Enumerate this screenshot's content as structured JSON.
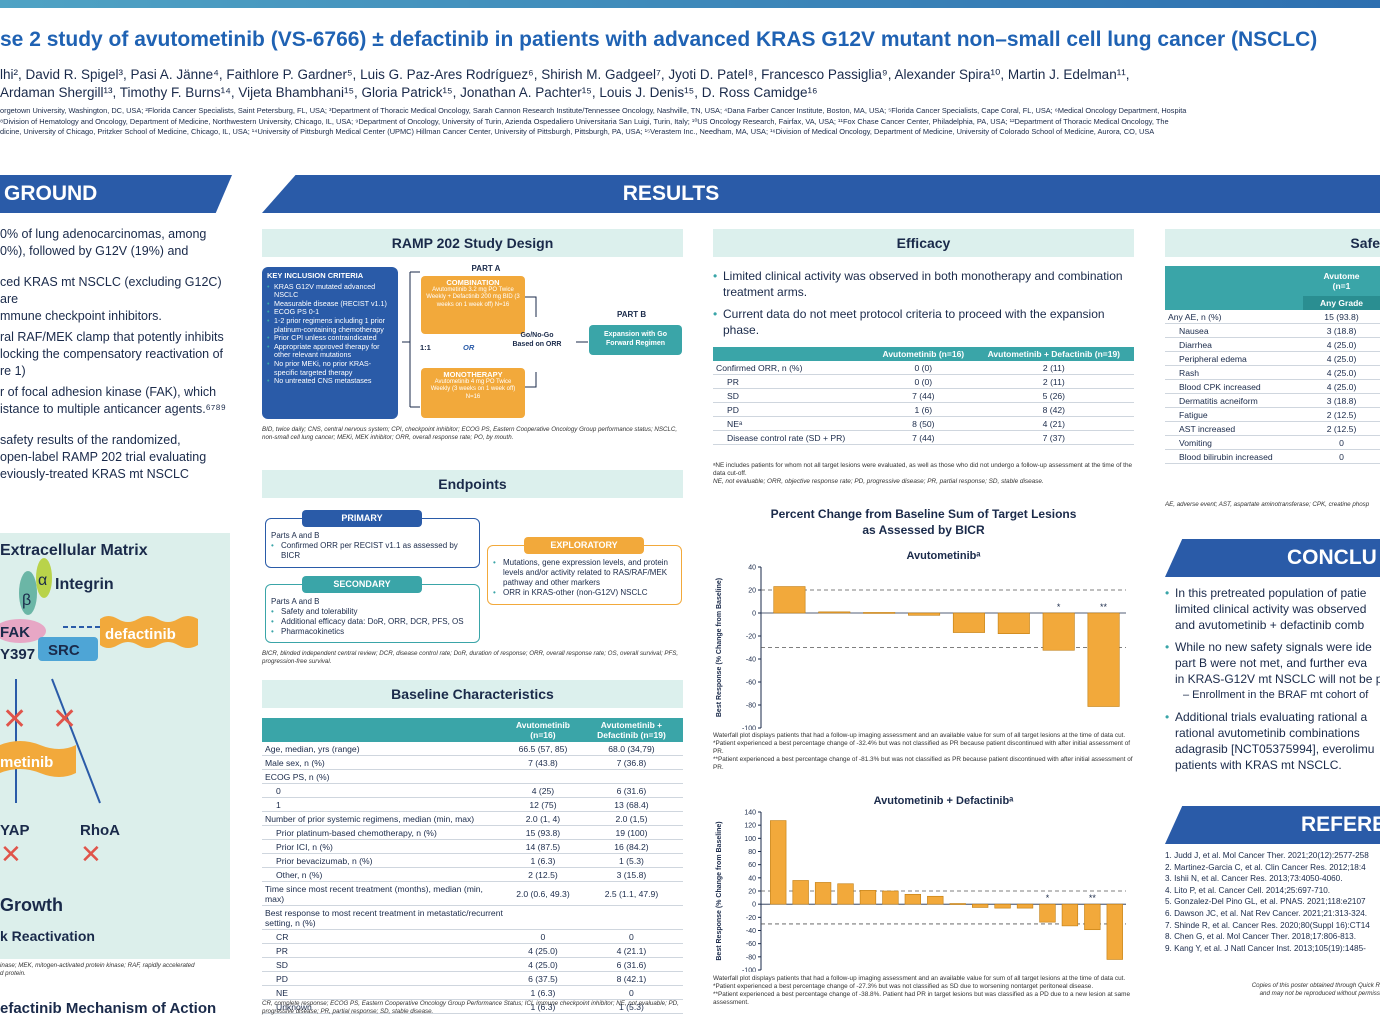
{
  "header": {
    "title": "se 2 study of avutometinib (VS-6766) ± defactinib in patients with advanced KRAS G12V mutant non–small cell lung cancer (NSCLC)",
    "authors_line1": "lhi², David R. Spigel³, Pasi A. Jänne⁴, Faithlore P. Gardner⁵, Luis G. Paz-Ares Rodríguez⁶, Shirish M. Gadgeel⁷, Jyoti D. Patel⁸, Francesco Passiglia⁹, Alexander Spira¹⁰, Martin J. Edelman¹¹,",
    "authors_line2": "Ardaman Shergill¹³, Timothy F. Burns¹⁴, Vijeta Bhambhani¹⁵, Gloria Patrick¹⁵, Jonathan A. Pachter¹⁵, Louis J. Denis¹⁵, D. Ross Camidge¹⁶",
    "affil1": "orgetown University, Washington, DC, USA; ²Florida Cancer Specialists, Saint Petersburg, FL, USA; ³Department of Thoracic Medical Oncology, Sarah Cannon Research Institute/Tennessee Oncology, Nashville, TN, USA; ⁴Dana Farber Cancer Institute, Boston, MA, USA; ⁵Florida Cancer Specialists, Cape Coral, FL, USA; ⁶Medical Oncology Department, Hospita",
    "affil2": "⁸Division of Hematology and Oncology, Department of Medicine, Northwestern University, Chicago, IL, USA; ⁹Department of Oncology, University of Turin, Azienda Ospedaliero Universitaria San Luigi, Turin, Italy; ¹⁰US Oncology Research, Fairfax, VA, USA; ¹¹Fox Chase Cancer Center, Philadelphia, PA, USA; ¹²Department of Thoracic Medical Oncology, The",
    "affil3": "dicine, University of Chicago, Pritzker School of Medicine, Chicago, IL, USA; ¹⁴University of Pittsburgh Medical Center (UPMC) Hillman Cancer Center, University of Pittsburgh, Pittsburgh, PA, USA; ¹⁵Verastem Inc., Needham, MA, USA; ¹⁶Division of Medical Oncology, Department of Medicine, University of Colorado School of Medicine, Aurora, CO, USA"
  },
  "background": {
    "heading": "GROUND",
    "p1a": "0% of lung adenocarcinomas, among",
    "p1b": "0%), followed by G12V (19%) and",
    "p2a": "ced KRAS mt NSCLC (excluding G12C) are",
    "p2b": "mmune checkpoint inhibitors.",
    "p3a": "ral RAF/MEK clamp that potently inhibits",
    "p3b": "locking the compensatory reactivation of",
    "p3c": "re 1)",
    "p4a": "r of focal adhesion kinase (FAK), which",
    "p4b": "istance to multiple anticancer agents.⁶⁷⁸⁹",
    "p5a": "safety results of the randomized,",
    "p5b": "open-label RAMP 202 trial evaluating",
    "p5c": "eviously-treated KRAS mt NSCLC",
    "moa": {
      "ecm": "Extracellular Matrix",
      "integrin": "Integrin",
      "beta": "β",
      "alpha": "α",
      "fak": "FAK",
      "y397": "Y397",
      "src": "SRC",
      "defactinib": "defactinib",
      "metinib": "metinib",
      "yap": "YAP",
      "rhoa": "RhoA",
      "growth": "Growth",
      "reactivation": "k Reactivation"
    },
    "moa_footnote": "inase; MEK, mitogen-activated protein kinase; RAF, rapidly accelerated",
    "moa_footnote2": "d protein.",
    "moa_caption": "efactinib Mechanism of Action"
  },
  "results": {
    "heading": "RESULTS"
  },
  "study_design": {
    "heading": "RAMP 202 Study Design",
    "criteria_title": "KEY INCLUSION CRITERIA",
    "criteria": [
      "KRAS G12V mutated advanced NSCLC",
      "Measurable disease (RECIST v1.1)",
      "ECOG PS 0-1",
      "1-2 prior regimens including 1 prior platinum-containing chemotherapy",
      "Prior CPI unless contraindicated",
      "Appropriate approved therapy for other relevant mutations",
      "No prior MEKi, no prior KRAS-specific targeted therapy",
      "No untreated CNS metastases"
    ],
    "part_a": "PART A",
    "combination": "COMBINATION",
    "combination_detail": "Avutometinib 3.2 mg PO Twice Weekly + Defactinib 200 mg BID (3 weeks on 1 week off) N=16",
    "ratio": "1:1",
    "or": "OR",
    "monotherapy": "MONOTHERAPY",
    "monotherapy_detail": "Avutometinib 4 mg PO Twice Weekly (3 weeks on 1 week off) N=16",
    "gonogo": "Go/No-Go Based on ORR",
    "part_b": "PART B",
    "expansion": "Expansion with Go Forward Regimen",
    "footnote": "BID, twice daily; CNS, central nervous system; CPI, checkpoint inhibitor; ECOG PS, Eastern Cooperative Oncology Group performance status; NSCLC, non-small cell lung cancer; MEKi, MEK inhibitor; ORR, overall response rate; PO, by mouth."
  },
  "endpoints": {
    "heading": "Endpoints",
    "primary": "PRIMARY",
    "primary_items": [
      "Parts A and B",
      "Confirmed ORR per RECIST v1.1 as assessed by BICR"
    ],
    "secondary": "SECONDARY",
    "secondary_items": [
      "Parts A and B",
      "Safety and tolerability",
      "Additional efficacy data: DoR, ORR, DCR, PFS, OS",
      "Pharmacokinetics"
    ],
    "exploratory": "EXPLORATORY",
    "exploratory_items": [
      "Mutations, gene expression levels, and protein levels and/or activity related to RAS/RAF/MEK pathway and other markers",
      "ORR in KRAS-other (non-G12V) NSCLC"
    ],
    "footnote": "BICR, blinded independent central review; DCR, disease control rate; DoR, duration of response; ORR, overall response rate; OS, overall survival; PFS, progression-free survival."
  },
  "baseline": {
    "heading": "Baseline Characteristics",
    "col1": "Avutometinib (n=16)",
    "col2": "Avutometinib + Defactinib (n=19)",
    "rows": [
      [
        "Age, median, yrs (range)",
        "66.5 (57, 85)",
        "68.0 (34,79)",
        0
      ],
      [
        "Male sex, n (%)",
        "7 (43.8)",
        "7 (36.8)",
        0
      ],
      [
        "ECOG PS, n (%)",
        "",
        "",
        0
      ],
      [
        "0",
        "4 (25)",
        "6 (31.6)",
        1
      ],
      [
        "1",
        "12 (75)",
        "13 (68.4)",
        1
      ],
      [
        "Number of prior systemic regimens, median (min, max)",
        "2.0 (1, 4)",
        "2.0 (1,5)",
        0
      ],
      [
        "Prior platinum-based chemotherapy, n (%)",
        "15 (93.8)",
        "19 (100)",
        1
      ],
      [
        "Prior ICI, n (%)",
        "14 (87.5)",
        "16 (84.2)",
        1
      ],
      [
        "Prior bevacizumab, n (%)",
        "1 (6.3)",
        "1 (5.3)",
        1
      ],
      [
        "Other, n (%)",
        "2 (12.5)",
        "3 (15.8)",
        1
      ],
      [
        "Time since most recent treatment (months), median (min, max)",
        "2.0 (0.6, 49.3)",
        "2.5 (1.1, 47.9)",
        0
      ],
      [
        "Best response to most recent treatment in metastatic/recurrent setting, n (%)",
        "",
        "",
        0
      ],
      [
        "CR",
        "0",
        "0",
        1
      ],
      [
        "PR",
        "4 (25.0)",
        "4 (21.1)",
        1
      ],
      [
        "SD",
        "4 (25.0)",
        "6 (31.6)",
        1
      ],
      [
        "PD",
        "6 (37.5)",
        "8 (42.1)",
        1
      ],
      [
        "NE",
        "1 (6.3)",
        "0",
        1
      ],
      [
        "Unknown",
        "1 (6.3)",
        "1 (5.3)",
        1
      ]
    ],
    "footnote": "CR, complete response; ECOG PS, Eastern Cooperative Oncology Group Performance Status; ICI, immune checkpoint inhibitor; NE, not evaluable; PD, progressive disease; PR, partial response; SD, stable disease."
  },
  "efficacy": {
    "heading": "Efficacy",
    "b1": "Limited clinical activity was observed in both monotherapy and combination treatment arms.",
    "b2": "Current data do not meet protocol criteria to proceed with the expansion phase.",
    "col1": "Avutometinib (n=16)",
    "col2": "Avutometinib + Defactinib (n=19)",
    "rows": [
      [
        "Confirmed ORR, n (%)",
        "0 (0)",
        "2 (11)",
        0
      ],
      [
        "PR",
        "0 (0)",
        "2 (11)",
        1
      ],
      [
        "SD",
        "7 (44)",
        "5 (26)",
        1
      ],
      [
        "PD",
        "1 (6)",
        "8 (42)",
        1
      ],
      [
        "NEᵃ",
        "8 (50)",
        "4 (21)",
        1
      ],
      [
        "Disease control rate (SD + PR)",
        "7 (44)",
        "7 (37)",
        1
      ]
    ],
    "footnote1": "ᵃNE includes patients for whom not all target lesions were evaluated, as well as those who did not undergo a follow-up assessment at the time of the data cut-off.",
    "footnote2": "NE, not evaluable; ORR, objective response rate; PD, progressive disease; PR, partial response; SD, stable disease."
  },
  "waterfall_heading1": "Percent Change from Baseline Sum of Target Lesions",
  "waterfall_heading2": "as Assessed by BICR",
  "chart_data": [
    {
      "type": "bar",
      "title": "Avutometinibᵃ",
      "ylabel": "Best Response (% Change from Baseline)",
      "ylim": [
        -100,
        40
      ],
      "yticks": [
        40,
        20,
        0,
        -20,
        -40,
        -60,
        -80,
        -100
      ],
      "values": [
        23,
        1,
        0.5,
        -2,
        -17,
        -18,
        -32.4,
        -81.3
      ],
      "annotations": [
        null,
        null,
        null,
        null,
        null,
        null,
        "*",
        "**"
      ],
      "reference_lines": [
        20,
        -30
      ]
    },
    {
      "type": "bar",
      "title": "Avutometinib + Defactinibᵃ",
      "ylabel": "Best Response (% Change from Baseline)",
      "ylim": [
        -100,
        140
      ],
      "yticks": [
        140,
        120,
        100,
        80,
        60,
        40,
        20,
        0,
        -20,
        -40,
        -60,
        -80,
        -100
      ],
      "values": [
        127,
        36,
        33,
        31,
        21,
        20,
        15,
        12,
        1,
        -5,
        -6,
        -6,
        -27.3,
        -33,
        -38.8,
        -84
      ],
      "annotations": [
        null,
        null,
        null,
        null,
        null,
        null,
        null,
        null,
        null,
        null,
        null,
        null,
        "*",
        null,
        "**",
        null
      ],
      "reference_lines": [
        20,
        -30
      ]
    }
  ],
  "wf1_foot": [
    "Waterfall plot displays patients that had a follow-up imaging assessment and an available value for sum of all target lesions at the time of data cut.",
    "*Patient experienced a best percentage change of -32.4% but was not classified as PR because patient discontinued with after initial assessment of PR.",
    "**Patient experienced a best percentage change of -81.3% but was not classified as PR because patient discontinued with after initial assessment of PR."
  ],
  "wf2_foot": [
    "Waterfall plot displays patients that had a follow-up imaging assessment and an available value for sum of all target lesions at the time of data cut.",
    "*Patient experienced a best percentage change of -27.3% but was not classified as SD due to worsening nontarget peritoneal disease.",
    "**Patient experienced a best percentage change of -38.8%. Patient had PR in target lesions but was classified as a PD due to a new lesion at same assessment."
  ],
  "safety": {
    "heading": "Safe",
    "col1": "Avutome",
    "col1b": "(n=1",
    "subcol": "Any Grade",
    "rows": [
      [
        "Any AE, n (%)",
        "15 (93.8)",
        0
      ],
      [
        "Nausea",
        "3 (18.8)",
        1
      ],
      [
        "Diarrhea",
        "4 (25.0)",
        1
      ],
      [
        "Peripheral edema",
        "4 (25.0)",
        1
      ],
      [
        "Rash",
        "4 (25.0)",
        1
      ],
      [
        "Blood CPK increased",
        "4 (25.0)",
        1
      ],
      [
        "Dermatitis acneiform",
        "3 (18.8)",
        1
      ],
      [
        "Fatigue",
        "2 (12.5)",
        1
      ],
      [
        "AST increased",
        "2 (12.5)",
        1
      ],
      [
        "Vomiting",
        "0",
        1
      ],
      [
        "Blood bilirubin increased",
        "0",
        1
      ]
    ],
    "footnote": "AE, adverse event; AST, aspartate aminotransferase; CPK, creatine phosp"
  },
  "conclusions": {
    "heading": "CONCLU",
    "lines": [
      [
        "In this pretreated population of patie",
        "limited clinical activity was observed",
        "and avutometinib + defactinib comb"
      ],
      [
        "While no new safety signals were ide",
        "part B were not met, and further eva",
        "in KRAS-G12V mt NSCLC will not be p"
      ],
      [
        "– Enrollment in the BRAF mt cohort of"
      ],
      [
        "Additional trials evaluating rational a",
        "rational avutometinib combinations",
        "adagrasib [NCT05375994], everolimu",
        "patients with KRAS mt NSCLC."
      ]
    ]
  },
  "references": {
    "heading": "REFERE",
    "items": [
      "1. Judd J, et al. Mol Cancer Ther. 2021;20(12):2577-258",
      "2. Martinez-Garcia C, et al. Clin Cancer Res. 2012;18:4",
      "3. Ishii N, et al. Cancer Res. 2013;73:4050-4060.",
      "4. Lito P, et al. Cancer Cell. 2014;25:697-710.",
      "5. Gonzalez-Del Pino GL, et al. PNAS. 2021;118:e2107",
      "6. Dawson JC, et al. Nat Rev Cancer. 2021;21:313-324.",
      "7. Shinde R, et al. Cancer Res. 2020;80(Suppl 16):CT14",
      "8. Chen G, et al. Mol Cancer Ther. 2018;17:806-813.",
      "9. Kang Y, et al. J Natl Cancer Inst. 2013;105(19):1485-"
    ],
    "copy1": "Copies of this poster obtained through Quick R",
    "copy2": "and may not be reproduced without permiss"
  },
  "colors": {
    "blue": "#2a5ba8",
    "teal": "#3aa5a8",
    "orange": "#f2a93b",
    "lightteal": "#dcf0ed"
  }
}
